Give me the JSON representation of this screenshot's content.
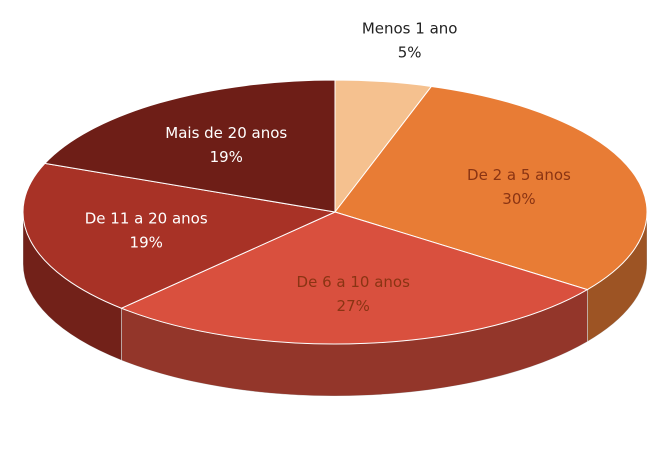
{
  "chart_data": {
    "type": "pie3d",
    "categories": [
      "Menos 1 ano",
      "De 2 a 5 anos",
      "De 6 a 10 anos",
      "De 11 a 20 anos",
      "Mais de 20 anos"
    ],
    "values": [
      5,
      30,
      27,
      19,
      19
    ],
    "value_labels": [
      "5%",
      "30%",
      "27%",
      "19%",
      "19%"
    ],
    "colors": [
      "#f5c18f",
      "#e87c35",
      "#d9503e",
      "#a83226",
      "#6e1e17"
    ]
  }
}
